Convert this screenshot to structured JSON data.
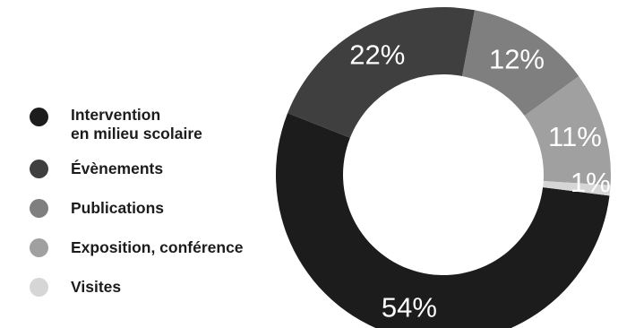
{
  "chart_data": {
    "type": "pie",
    "categories": [
      "Intervention\nen milieu scolaire",
      "Évènements",
      "Publications",
      "Exposition, conférence",
      "Visites"
    ],
    "values": [
      54,
      22,
      12,
      11,
      1
    ],
    "value_labels": [
      "54%",
      "22%",
      "12%",
      "11%",
      "1%"
    ],
    "colors": [
      "#1c1c1c",
      "#3f3f3f",
      "#7f7f7f",
      "#a0a0a0",
      "#d6d6d6"
    ],
    "donut": true,
    "legend_position": "left"
  }
}
